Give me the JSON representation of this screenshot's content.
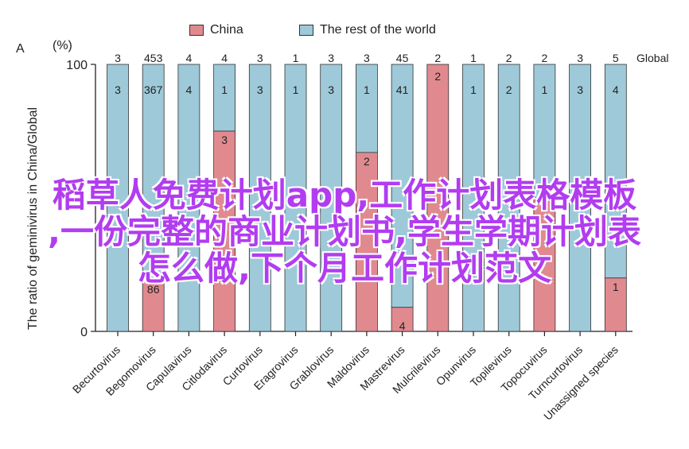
{
  "chart_data": {
    "type": "bar",
    "panel_label": "A",
    "ylabel": "The ratio of geminivirus in China/Global",
    "yunit": "(%)",
    "ylim": [
      0,
      100
    ],
    "yticks": [
      0,
      100
    ],
    "global_header": "Global",
    "categories": [
      "Becurtovirus",
      "Begomovirus",
      "Capulavirus",
      "Citlodavirus",
      "Curtovirus",
      "Eragrovirus",
      "Grablovirus",
      "Maldovirus",
      "Mastrevirus",
      "Mulcrilevirus",
      "Opunvirus",
      "Topilevirus",
      "Topocuvirus",
      "Turncurtovirus",
      "Unassigned species"
    ],
    "global_totals": [
      "3",
      "453",
      "4",
      "4",
      "3",
      "1",
      "3",
      "3",
      "45",
      "2",
      "1",
      "2",
      "2",
      "3",
      "5"
    ],
    "series": [
      {
        "name": "China",
        "color": "#e08a8f",
        "values": [
          0,
          19,
          0,
          75,
          0,
          0,
          0,
          67,
          9,
          100,
          0,
          0,
          50,
          0,
          20
        ],
        "labels": [
          "",
          "86",
          "",
          "3",
          "",
          "",
          "",
          "2",
          "4",
          "2",
          "",
          "",
          "1",
          "",
          "1"
        ]
      },
      {
        "name": "The rest of the world",
        "color": "#9ec9d8",
        "values": [
          100,
          81,
          100,
          25,
          100,
          100,
          100,
          33,
          91,
          0,
          100,
          100,
          50,
          100,
          80
        ],
        "labels": [
          "3",
          "367",
          "4",
          "1",
          "3",
          "1",
          "3",
          "1",
          "41",
          "",
          "1",
          "2",
          "1",
          "3",
          "4"
        ]
      }
    ]
  },
  "legend": {
    "china": {
      "label": "China",
      "color": "#e08a8f"
    },
    "rest": {
      "label": "The rest of the world",
      "color": "#9ec9d8"
    }
  },
  "overlay": {
    "line1": "稻草人免费计划app,工作计划表格模板",
    "line2": ",一份完整的商业计划书,学生学期计划表",
    "line3": "怎么做,下个月工作计划范文"
  }
}
